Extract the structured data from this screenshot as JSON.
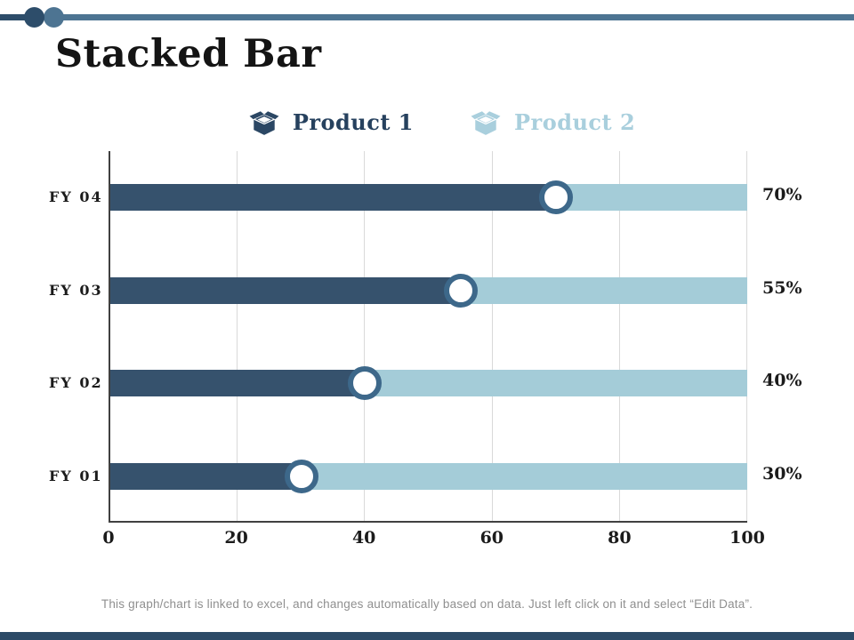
{
  "slide": {
    "title": "Stacked Bar",
    "footer": "This graph/chart is linked to excel, and changes automatically based on data. Just left click on it and select “Edit Data”."
  },
  "legend": [
    {
      "label": "Product 1",
      "color": "#2b4764"
    },
    {
      "label": "Product 2",
      "color": "#a9cfdd"
    }
  ],
  "chart_data": {
    "type": "bar",
    "orientation": "horizontal",
    "stacked": true,
    "title": "Stacked Bar",
    "categories": [
      "FY 04",
      "FY 03",
      "FY 02",
      "FY 01"
    ],
    "series": [
      {
        "name": "Product 1",
        "values": [
          70,
          55,
          40,
          30
        ],
        "color": "#36526d"
      },
      {
        "name": "Product 2",
        "values": [
          30,
          45,
          60,
          70
        ],
        "color": "#a4ccd8"
      }
    ],
    "value_labels": [
      "70%",
      "55%",
      "40%",
      "30%"
    ],
    "x_ticks": [
      "0",
      "20",
      "40",
      "60",
      "80",
      "100"
    ],
    "xlim": [
      0,
      100
    ],
    "grid": "vertical-only",
    "legend_position": "top",
    "marker": "white-circle-at-stack-junction"
  },
  "colors": {
    "accent_dark": "#2d4d6a",
    "accent_medium": "#4d7492",
    "bar_dark": "#36526d",
    "bar_light": "#a4ccd8",
    "marker_ring": "#3d688a",
    "gridline": "#d9d9d9",
    "axis": "#404040",
    "footer_text": "#8f8f8f"
  }
}
